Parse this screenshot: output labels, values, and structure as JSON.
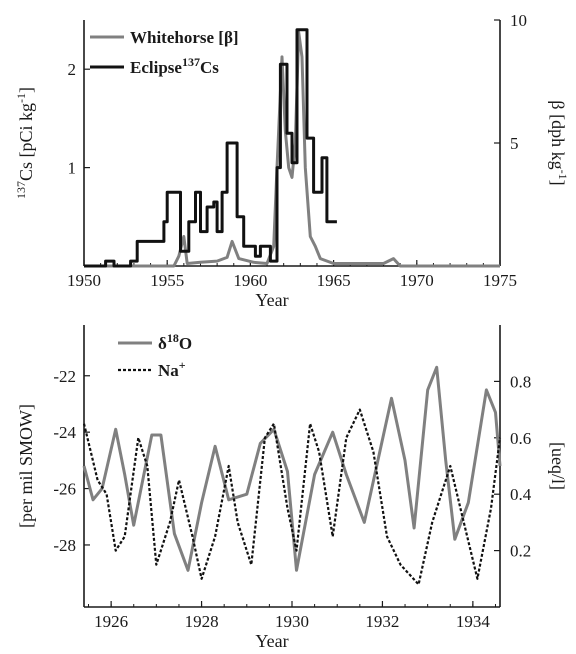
{
  "chart_data": [
    {
      "type": "line",
      "xlabel": "Year",
      "ylabel_left": "137Cs [pCi kg-1]",
      "ylabel_right": "β [dph kg-1]",
      "xlim": [
        1950,
        1975
      ],
      "ylim_left": [
        0,
        2.5
      ],
      "ylim_right": [
        0,
        10
      ],
      "x_ticks": [
        "1950",
        "1955",
        "1960",
        "1965",
        "1970",
        "1975"
      ],
      "y_ticks_left": [
        "1",
        "2"
      ],
      "y_ticks_right": [
        "5",
        "10"
      ],
      "legend_position": "top-left",
      "series": [
        {
          "name": "Whitehorse [β]",
          "axis": "right",
          "color": "#808080",
          "points": [
            [
              1950,
              0
            ],
            [
              1955.4,
              0
            ],
            [
              1955.7,
              0.4
            ],
            [
              1956,
              1.2
            ],
            [
              1956.2,
              0.1
            ],
            [
              1957,
              0.15
            ],
            [
              1958,
              0.2
            ],
            [
              1958.6,
              0.35
            ],
            [
              1958.9,
              1
            ],
            [
              1959.3,
              0.3
            ],
            [
              1960.2,
              0.15
            ],
            [
              1961,
              0.1
            ],
            [
              1961.4,
              0.8
            ],
            [
              1961.6,
              4
            ],
            [
              1961.9,
              8.5
            ],
            [
              1962.1,
              5.5
            ],
            [
              1962.3,
              4
            ],
            [
              1962.5,
              3.6
            ],
            [
              1962.7,
              5
            ],
            [
              1962.9,
              9.5
            ],
            [
              1963.1,
              8.5
            ],
            [
              1963.3,
              4
            ],
            [
              1963.6,
              1.2
            ],
            [
              1963.9,
              0.8
            ],
            [
              1964.2,
              0.3
            ],
            [
              1965,
              0.1
            ],
            [
              1968,
              0.1
            ],
            [
              1968.6,
              0.3
            ],
            [
              1969,
              0
            ],
            [
              1975,
              0
            ]
          ]
        },
        {
          "name": "Eclipse",
          "name_superscript": "137",
          "name_suffix": "Cs",
          "axis": "left",
          "color": "#111111",
          "points": [
            [
              1950,
              0
            ],
            [
              1951.3,
              0
            ],
            [
              1951.3,
              0.05
            ],
            [
              1951.8,
              0.05
            ],
            [
              1951.8,
              0
            ],
            [
              1952.8,
              0
            ],
            [
              1952.8,
              0.05
            ],
            [
              1953.2,
              0.05
            ],
            [
              1953.2,
              0.25
            ],
            [
              1954.8,
              0.25
            ],
            [
              1954.8,
              0.45
            ],
            [
              1955,
              0.45
            ],
            [
              1955,
              0.75
            ],
            [
              1955.8,
              0.75
            ],
            [
              1955.8,
              0.15
            ],
            [
              1956.3,
              0.15
            ],
            [
              1956.3,
              0.45
            ],
            [
              1956.7,
              0.45
            ],
            [
              1956.7,
              0.75
            ],
            [
              1957,
              0.75
            ],
            [
              1957,
              0.35
            ],
            [
              1957.4,
              0.35
            ],
            [
              1957.4,
              0.6
            ],
            [
              1957.8,
              0.6
            ],
            [
              1957.8,
              0.65
            ],
            [
              1958,
              0.65
            ],
            [
              1958,
              0.35
            ],
            [
              1958.3,
              0.35
            ],
            [
              1958.3,
              0.75
            ],
            [
              1958.6,
              0.75
            ],
            [
              1958.6,
              1.25
            ],
            [
              1959.2,
              1.25
            ],
            [
              1959.2,
              0.5
            ],
            [
              1959.6,
              0.5
            ],
            [
              1959.6,
              0.2
            ],
            [
              1960.3,
              0.2
            ],
            [
              1960.3,
              0.1
            ],
            [
              1960.6,
              0.1
            ],
            [
              1960.6,
              0.2
            ],
            [
              1961.2,
              0.2
            ],
            [
              1961.2,
              0.05
            ],
            [
              1961.6,
              0.05
            ],
            [
              1961.6,
              1
            ],
            [
              1961.8,
              1
            ],
            [
              1961.8,
              2.05
            ],
            [
              1962.2,
              2.05
            ],
            [
              1962.2,
              1.35
            ],
            [
              1962.5,
              1.35
            ],
            [
              1962.5,
              1.05
            ],
            [
              1962.8,
              1.05
            ],
            [
              1962.8,
              2.4
            ],
            [
              1963.4,
              2.4
            ],
            [
              1963.4,
              1.3
            ],
            [
              1963.8,
              1.3
            ],
            [
              1963.8,
              0.75
            ],
            [
              1964.3,
              0.75
            ],
            [
              1964.3,
              1.1
            ],
            [
              1964.6,
              1.1
            ],
            [
              1964.6,
              0.45
            ],
            [
              1965.2,
              0.45
            ]
          ]
        }
      ]
    },
    {
      "type": "line",
      "xlabel": "Year",
      "ylabel_left": "[per mil SMOW]",
      "ylabel_right": "[ueq/l]",
      "xlim": [
        1925.4,
        1934.6
      ],
      "ylim_left": [
        -30.2,
        -20.2
      ],
      "ylim_right": [
        0,
        1
      ],
      "x_ticks": [
        "1926",
        "1928",
        "1930",
        "1932",
        "1934"
      ],
      "y_ticks_left": [
        "-22",
        "-24",
        "-26",
        "-28"
      ],
      "y_ticks_right": [
        "0.8",
        "0.6",
        "0.4",
        "0.2"
      ],
      "legend_position": "top-left",
      "series": [
        {
          "name": "δ",
          "name_superscript": "18",
          "name_suffix": "O",
          "axis": "left",
          "color": "#808080",
          "style": "solid",
          "points": [
            [
              1925.4,
              -25.2
            ],
            [
              1925.6,
              -26.4
            ],
            [
              1925.8,
              -26
            ],
            [
              1926.1,
              -23.9
            ],
            [
              1926.3,
              -25.5
            ],
            [
              1926.5,
              -27.3
            ],
            [
              1926.9,
              -24.1
            ],
            [
              1927.1,
              -24.1
            ],
            [
              1927.4,
              -27.6
            ],
            [
              1927.7,
              -28.9
            ],
            [
              1928,
              -26.5
            ],
            [
              1928.3,
              -24.5
            ],
            [
              1928.6,
              -26.4
            ],
            [
              1929,
              -26.2
            ],
            [
              1929.3,
              -24.4
            ],
            [
              1929.6,
              -23.9
            ],
            [
              1929.9,
              -25.4
            ],
            [
              1930.1,
              -28.9
            ],
            [
              1930.5,
              -25.5
            ],
            [
              1930.9,
              -24
            ],
            [
              1931.2,
              -25.5
            ],
            [
              1931.6,
              -27.2
            ],
            [
              1931.9,
              -25
            ],
            [
              1932.2,
              -22.8
            ],
            [
              1932.5,
              -25
            ],
            [
              1932.7,
              -27.4
            ],
            [
              1933,
              -22.5
            ],
            [
              1933.2,
              -21.7
            ],
            [
              1933.4,
              -25
            ],
            [
              1933.6,
              -27.8
            ],
            [
              1933.9,
              -26.5
            ],
            [
              1934.3,
              -22.5
            ],
            [
              1934.5,
              -23.3
            ],
            [
              1934.6,
              -25.2
            ]
          ]
        },
        {
          "name": "Na",
          "name_superscript": "+",
          "name_suffix": "",
          "axis": "right",
          "color": "#111111",
          "style": "dotted",
          "points": [
            [
              1925.4,
              0.65
            ],
            [
              1925.7,
              0.45
            ],
            [
              1925.9,
              0.4
            ],
            [
              1926.1,
              0.2
            ],
            [
              1926.3,
              0.25
            ],
            [
              1926.6,
              0.6
            ],
            [
              1926.8,
              0.5
            ],
            [
              1927,
              0.15
            ],
            [
              1927.3,
              0.3
            ],
            [
              1927.5,
              0.45
            ],
            [
              1927.8,
              0.25
            ],
            [
              1928,
              0.1
            ],
            [
              1928.3,
              0.25
            ],
            [
              1928.6,
              0.5
            ],
            [
              1928.8,
              0.3
            ],
            [
              1929.1,
              0.15
            ],
            [
              1929.4,
              0.6
            ],
            [
              1929.6,
              0.65
            ],
            [
              1929.9,
              0.35
            ],
            [
              1930.1,
              0.2
            ],
            [
              1930.4,
              0.65
            ],
            [
              1930.6,
              0.55
            ],
            [
              1930.9,
              0.25
            ],
            [
              1931.2,
              0.6
            ],
            [
              1931.5,
              0.7
            ],
            [
              1931.8,
              0.55
            ],
            [
              1932.1,
              0.25
            ],
            [
              1932.4,
              0.15
            ],
            [
              1932.8,
              0.08
            ],
            [
              1933.1,
              0.3
            ],
            [
              1933.5,
              0.5
            ],
            [
              1933.8,
              0.3
            ],
            [
              1934.1,
              0.1
            ],
            [
              1934.4,
              0.35
            ],
            [
              1934.6,
              0.6
            ]
          ]
        }
      ]
    }
  ]
}
